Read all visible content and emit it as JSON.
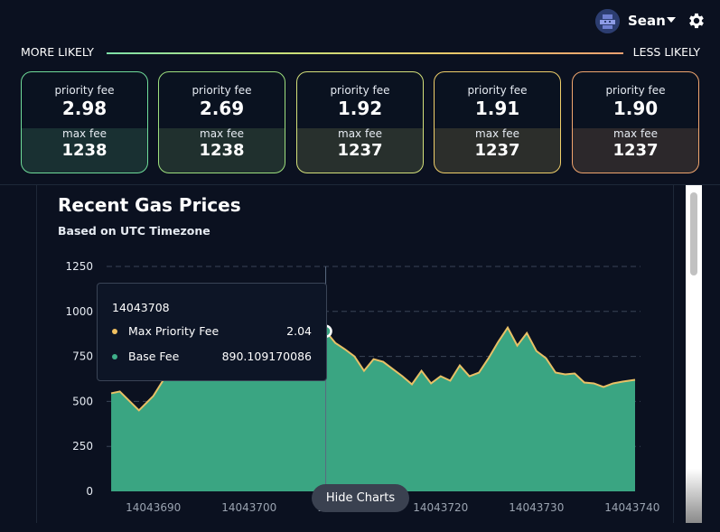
{
  "header": {
    "user_name": "Sean",
    "avatar_icon": "avatar-icon",
    "dropdown_icon": "caret-down-icon",
    "settings_icon": "gear-icon"
  },
  "likelihood": {
    "left_label": "MORE LIKELY",
    "right_label": "LESS LIKELY"
  },
  "fee_cards": [
    {
      "priority_label": "priority fee",
      "priority_value": "2.98",
      "max_label": "max fee",
      "max_value": "1238",
      "color": "#6fdc9a"
    },
    {
      "priority_label": "priority fee",
      "priority_value": "2.69",
      "max_label": "max fee",
      "max_value": "1238",
      "color": "#9ee07e"
    },
    {
      "priority_label": "priority fee",
      "priority_value": "1.92",
      "max_label": "max fee",
      "max_value": "1237",
      "color": "#d4e07a"
    },
    {
      "priority_label": "priority fee",
      "priority_value": "1.91",
      "max_label": "max fee",
      "max_value": "1237",
      "color": "#f0cf6a"
    },
    {
      "priority_label": "priority fee",
      "priority_value": "1.90",
      "max_label": "max fee",
      "max_value": "1237",
      "color": "#f0a56e"
    }
  ],
  "chart_panel": {
    "title": "Recent Gas Prices",
    "subtitle": "Based on UTC Timezone",
    "hide_button": "Hide Charts"
  },
  "tooltip": {
    "title": "14043708",
    "rows": [
      {
        "name": "Max Priority Fee",
        "value": "2.04",
        "color": "#f0c060"
      },
      {
        "name": "Base Fee",
        "value": "890.109170086",
        "color": "#3fb08a"
      }
    ]
  },
  "chart_data": {
    "type": "area",
    "title": "",
    "xlabel": "",
    "ylabel": "",
    "x_tick_labels": [
      "14043690",
      "14043700",
      "14043710",
      "14043720",
      "14043730",
      "14043740"
    ],
    "x_ticks": [
      14043690,
      14043700,
      14043710,
      14043720,
      14043730,
      14043740
    ],
    "y_tick_labels": [
      "0",
      "250",
      "500",
      "750",
      "1000",
      "1250"
    ],
    "y_ticks": [
      0,
      250,
      500,
      750,
      1000,
      1250
    ],
    "xlim": [
      14043685.5,
      14043740.3
    ],
    "ylim": [
      0,
      1250
    ],
    "grid": "horizontal-dashed",
    "area_color": "#3aa582",
    "line_color": "#e8c066",
    "highlight_x": 14043708,
    "series": [
      {
        "name": "Base Fee",
        "x": [
          14043685.6,
          14043686.5,
          14043688.5,
          14043690,
          14043692,
          14043694,
          14043696,
          14043698,
          14043700,
          14043702,
          14043704,
          14043706,
          14043707,
          14043708,
          14043709,
          14043710,
          14043711,
          14043712,
          14043713,
          14043714,
          14043715,
          14043716,
          14043717,
          14043718,
          14043719,
          14043720,
          14043721,
          14043722,
          14043723,
          14043724,
          14043725,
          14043726,
          14043727,
          14043728,
          14043729,
          14043730,
          14043731,
          14043732,
          14043733,
          14043734,
          14043735,
          14043736,
          14043737,
          14043738,
          14043739,
          14043740.3
        ],
        "values": [
          545,
          555,
          450,
          530,
          700,
          820,
          850,
          900,
          940,
          980,
          1000,
          1020,
          1015,
          890,
          825,
          790,
          750,
          670,
          735,
          720,
          680,
          640,
          595,
          670,
          600,
          640,
          615,
          700,
          640,
          660,
          740,
          830,
          910,
          810,
          880,
          780,
          740,
          660,
          650,
          655,
          605,
          600,
          580,
          600,
          610,
          620
        ]
      }
    ]
  }
}
